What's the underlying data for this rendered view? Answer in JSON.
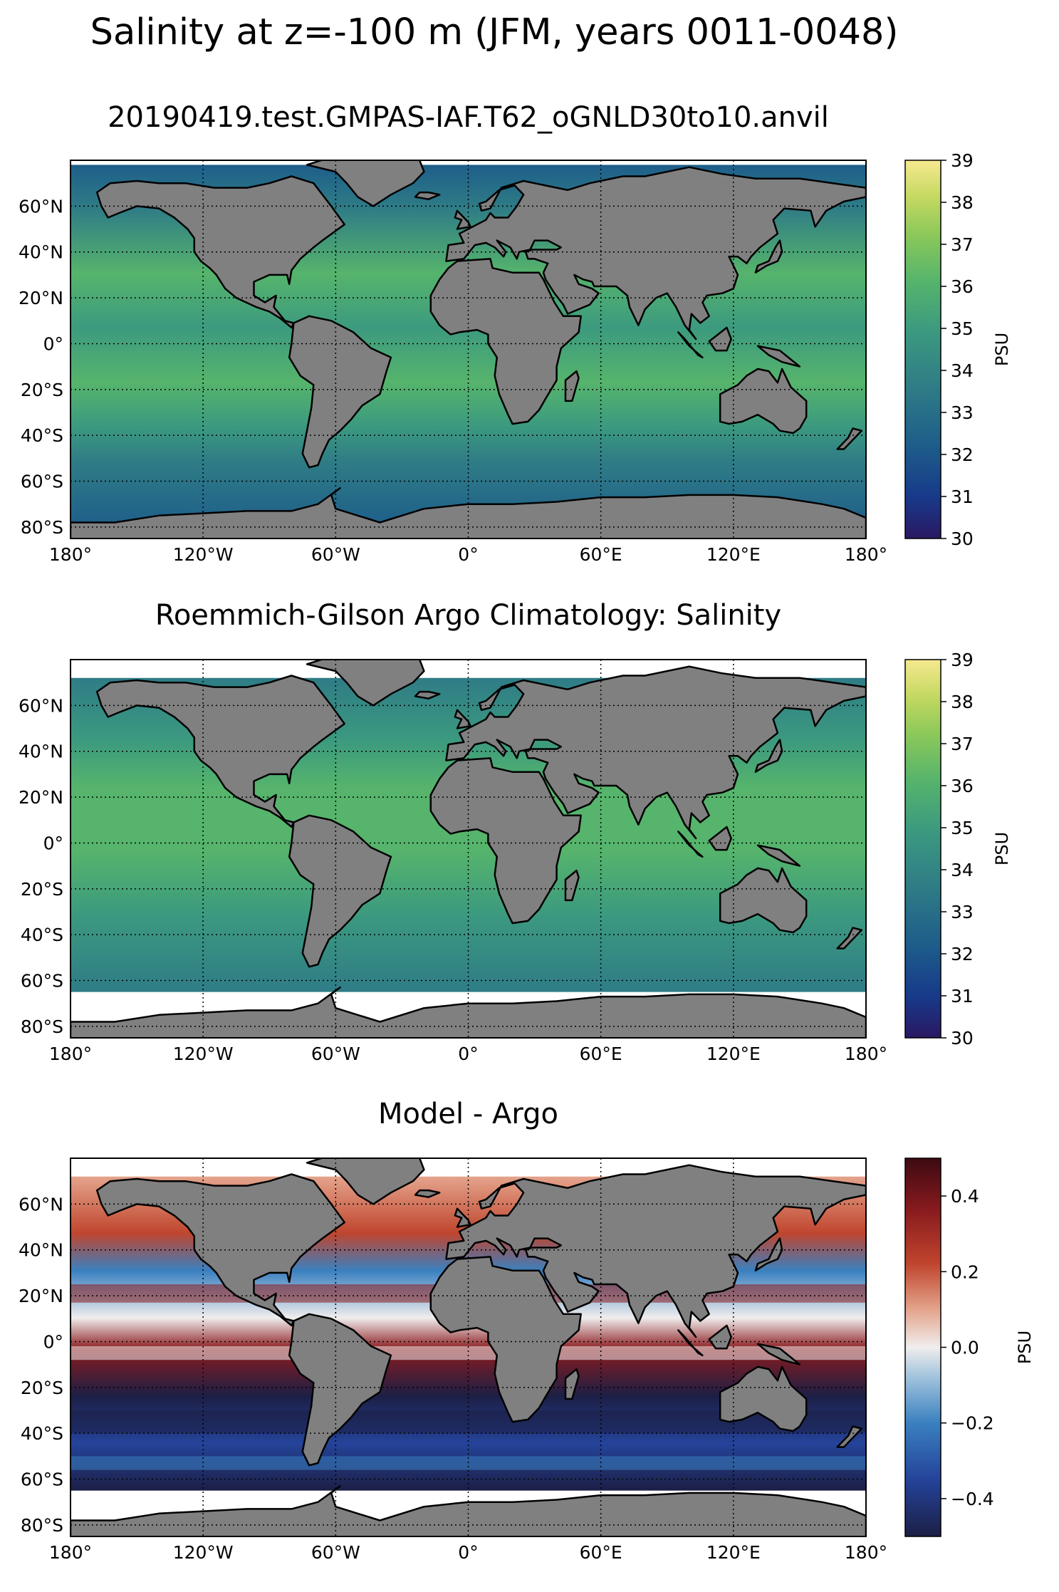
{
  "suptitle": "Salinity at z=-100 m (JFM, years 0011-0048)",
  "lon_ticks": [
    "180°",
    "120°W",
    "60°W",
    "0°",
    "60°E",
    "120°E",
    "180°"
  ],
  "lat_ticks": [
    "60°N",
    "40°N",
    "20°N",
    "0°",
    "20°S",
    "40°S",
    "60°S",
    "80°S"
  ],
  "panels": [
    {
      "title": "20190419.test.GMPAS-IAF.T62_oGNLD30to10.anvil",
      "colormap": "haline",
      "colorbar": {
        "label": "PSU",
        "ticks": [
          "39",
          "38",
          "37",
          "36",
          "35",
          "34",
          "33",
          "32",
          "31",
          "30"
        ],
        "range": [
          30,
          39
        ]
      }
    },
    {
      "title": "Roemmich-Gilson Argo Climatology: Salinity",
      "colormap": "haline",
      "colorbar": {
        "label": "PSU",
        "ticks": [
          "39",
          "38",
          "37",
          "36",
          "35",
          "34",
          "33",
          "32",
          "31",
          "30"
        ],
        "range": [
          30,
          39
        ]
      }
    },
    {
      "title": "Model - Argo",
      "colormap": "balance",
      "colorbar": {
        "label": "PSU",
        "ticks": [
          "0.4",
          "0.2",
          "0.0",
          "−0.2",
          "−0.4"
        ],
        "range": [
          -0.5,
          0.5
        ]
      }
    }
  ],
  "colors": {
    "land": "#808080",
    "haline": [
      "#2a1862",
      "#173a8a",
      "#1e5e8a",
      "#2f7c86",
      "#3c9a7f",
      "#56b46c",
      "#8ac85a",
      "#c3d860",
      "#f6e98f"
    ],
    "balance": [
      "#1c1f45",
      "#24439a",
      "#3a80c0",
      "#a9c8de",
      "#f0eded",
      "#e4a48c",
      "#c0452e",
      "#8a1b1e",
      "#3d0a12"
    ]
  }
}
